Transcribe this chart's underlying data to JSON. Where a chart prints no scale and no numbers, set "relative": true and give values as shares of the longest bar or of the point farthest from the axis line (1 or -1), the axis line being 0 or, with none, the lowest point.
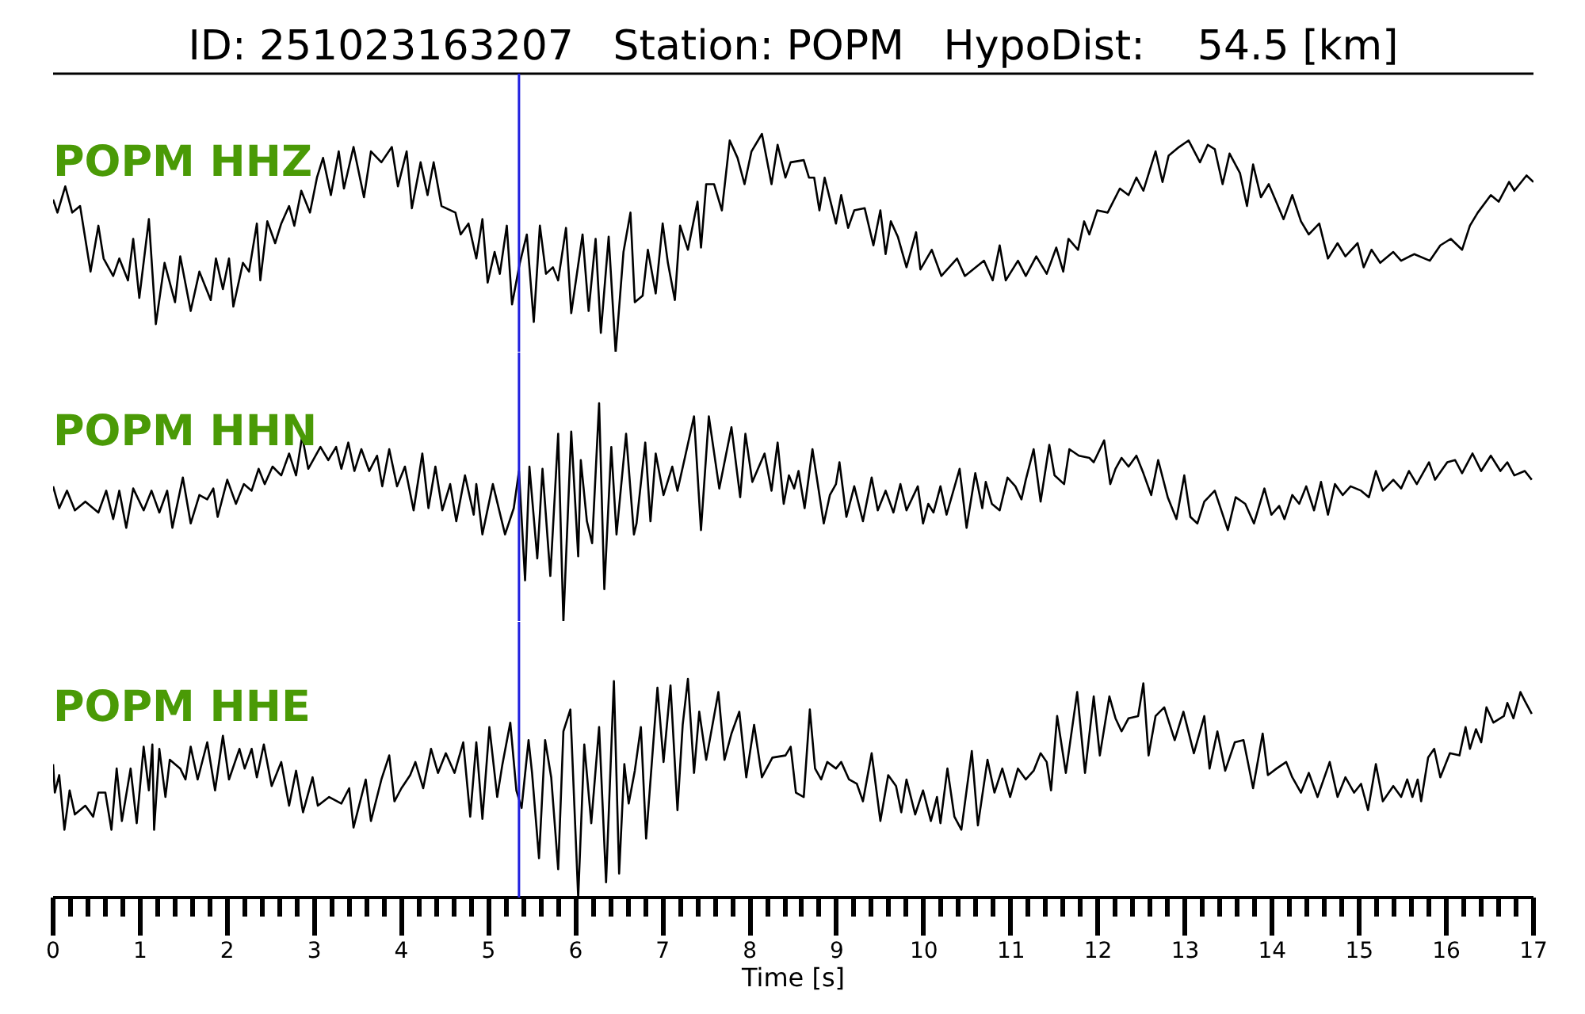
{
  "chart_data": [
    {
      "type": "line",
      "title": "ID: 251023163207   Station: POPM   HypoDist:    54.5 [km]",
      "relative": true,
      "xlim": [
        0,
        17
      ],
      "tick_labels": false,
      "ref_lines": [
        {
          "axis": "x",
          "value": 5.35,
          "color": "#2020e0"
        }
      ],
      "x": [
        0,
        0.05,
        0.14,
        0.22,
        0.31,
        0.37,
        0.43,
        0.52,
        0.58,
        0.69,
        0.76,
        0.86,
        0.92,
        0.99,
        1.1,
        1.18,
        1.28,
        1.4,
        1.46,
        1.58,
        1.68,
        1.81,
        1.87,
        1.95,
        2.02,
        2.07,
        2.18,
        2.25,
        2.34,
        2.38,
        2.46,
        2.55,
        2.62,
        2.71,
        2.77,
        2.85,
        2.95,
        3.03,
        3.1,
        3.19,
        3.28,
        3.34,
        3.45,
        3.57,
        3.65,
        3.77,
        3.89,
        3.96,
        4.06,
        4.12,
        4.22,
        4.3,
        4.37,
        4.46,
        4.62,
        4.68,
        4.77,
        4.86,
        4.93,
        4.99,
        5.07,
        5.13,
        5.21,
        5.27,
        5.36,
        5.44,
        5.52,
        5.59,
        5.66,
        5.74,
        5.8,
        5.89,
        5.95,
        6.08,
        6.15,
        6.23,
        6.29,
        6.38,
        6.46,
        6.55,
        6.63,
        6.68,
        6.77,
        6.83,
        6.92,
        7,
        7.06,
        7.14,
        7.2,
        7.29,
        7.4,
        7.44,
        7.5,
        7.59,
        7.68,
        7.77,
        7.86,
        7.94,
        8.02,
        8.14,
        8.25,
        8.32,
        8.41,
        8.47,
        8.62,
        8.68,
        8.74,
        8.8,
        8.86,
        8.99,
        9.05,
        9.13,
        9.2,
        9.32,
        9.42,
        9.5,
        9.56,
        9.62,
        9.7,
        9.8,
        9.91,
        9.96,
        10.09,
        10.2,
        10.38,
        10.47,
        10.69,
        10.79,
        10.87,
        10.94,
        11.08,
        11.17,
        11.29,
        11.41,
        11.52,
        11.6,
        11.66,
        11.77,
        11.84,
        11.9,
        11.99,
        12.11,
        12.25,
        12.35,
        12.44,
        12.52,
        12.66,
        12.74,
        12.81,
        12.93,
        13.04,
        13.17,
        13.26,
        13.34,
        13.43,
        13.51,
        13.63,
        13.71,
        13.78,
        13.87,
        13.96,
        14.13,
        14.23,
        14.33,
        14.42,
        14.54,
        14.64,
        14.75,
        14.84,
        14.98,
        15.05,
        15.14,
        15.24,
        15.39,
        15.48,
        15.63,
        15.81,
        15.93,
        16.05,
        16.18,
        16.27,
        16.36,
        16.51,
        16.6,
        16.72,
        16.78,
        16.92,
        17
      ],
      "series": [
        {
          "name": "POPM HHZ",
          "color": "#000000",
          "values": [
            0.7,
            0.64,
            0.76,
            0.64,
            0.67,
            0.52,
            0.37,
            0.58,
            0.43,
            0.35,
            0.43,
            0.33,
            0.52,
            0.25,
            0.61,
            0.13,
            0.41,
            0.23,
            0.44,
            0.19,
            0.37,
            0.24,
            0.43,
            0.29,
            0.43,
            0.21,
            0.41,
            0.37,
            0.59,
            0.33,
            0.6,
            0.5,
            0.59,
            0.67,
            0.58,
            0.74,
            0.64,
            0.8,
            0.89,
            0.72,
            0.92,
            0.75,
            0.94,
            0.71,
            0.92,
            0.87,
            0.94,
            0.76,
            0.92,
            0.66,
            0.87,
            0.72,
            0.87,
            0.67,
            0.64,
            0.54,
            0.59,
            0.43,
            0.61,
            0.32,
            0.46,
            0.36,
            0.58,
            0.22,
            0.41,
            0.54,
            0.14,
            0.58,
            0.36,
            0.39,
            0.33,
            0.57,
            0.18,
            0.54,
            0.19,
            0.52,
            0.09,
            0.53,
            0.0,
            0.46,
            0.64,
            0.23,
            0.26,
            0.47,
            0.27,
            0.59,
            0.41,
            0.24,
            0.58,
            0.47,
            0.69,
            0.48,
            0.77,
            0.77,
            0.65,
            0.97,
            0.89,
            0.77,
            0.92,
            1.0,
            0.77,
            0.95,
            0.8,
            0.87,
            0.88,
            0.8,
            0.8,
            0.65,
            0.8,
            0.59,
            0.72,
            0.57,
            0.65,
            0.66,
            0.49,
            0.65,
            0.45,
            0.6,
            0.53,
            0.39,
            0.55,
            0.38,
            0.47,
            0.35,
            0.43,
            0.35,
            0.42,
            0.33,
            0.49,
            0.33,
            0.42,
            0.35,
            0.44,
            0.36,
            0.48,
            0.37,
            0.52,
            0.47,
            0.6,
            0.54,
            0.65,
            0.64,
            0.75,
            0.72,
            0.8,
            0.74,
            0.92,
            0.78,
            0.9,
            0.94,
            0.97,
            0.87,
            0.95,
            0.93,
            0.77,
            0.91,
            0.82,
            0.67,
            0.86,
            0.71,
            0.77,
            0.61,
            0.72,
            0.6,
            0.54,
            0.59,
            0.43,
            0.5,
            0.44,
            0.5,
            0.39,
            0.47,
            0.41,
            0.46,
            0.42,
            0.45,
            0.42,
            0.49,
            0.52,
            0.47,
            0.58,
            0.64,
            0.72,
            0.69,
            0.78,
            0.74,
            0.81,
            0.78
          ]
        }
      ]
    },
    {
      "type": "line",
      "relative": true,
      "xlim": [
        0,
        17
      ],
      "tick_labels": false,
      "ref_lines": [
        {
          "axis": "x",
          "value": 5.35,
          "color": "#2020e0"
        }
      ],
      "x": [
        0,
        0.07,
        0.16,
        0.25,
        0.37,
        0.52,
        0.61,
        0.69,
        0.76,
        0.84,
        0.92,
        1.04,
        1.13,
        1.22,
        1.31,
        1.37,
        1.49,
        1.58,
        1.68,
        1.77,
        1.84,
        1.89,
        2,
        2.1,
        2.19,
        2.28,
        2.36,
        2.43,
        2.52,
        2.62,
        2.71,
        2.79,
        2.86,
        2.93,
        3.07,
        3.16,
        3.25,
        3.31,
        3.39,
        3.46,
        3.54,
        3.63,
        3.72,
        3.78,
        3.86,
        3.95,
        4.04,
        4.14,
        4.24,
        4.31,
        4.39,
        4.47,
        4.56,
        4.63,
        4.73,
        4.83,
        4.86,
        4.93,
        5.05,
        5.19,
        5.29,
        5.35,
        5.42,
        5.47,
        5.56,
        5.62,
        5.71,
        5.8,
        5.86,
        5.95,
        6.03,
        6.06,
        6.13,
        6.19,
        6.27,
        6.33,
        6.41,
        6.47,
        6.58,
        6.67,
        6.7,
        6.8,
        6.86,
        6.92,
        7.01,
        7.11,
        7.17,
        7.26,
        7.36,
        7.44,
        7.53,
        7.65,
        7.79,
        7.89,
        7.95,
        8.03,
        8.17,
        8.25,
        8.32,
        8.39,
        8.45,
        8.51,
        8.56,
        8.63,
        8.72,
        8.85,
        8.92,
        8.99,
        9.03,
        9.11,
        9.2,
        9.3,
        9.4,
        9.47,
        9.56,
        9.65,
        9.73,
        9.8,
        9.93,
        9.99,
        10.05,
        10.11,
        10.19,
        10.26,
        10.41,
        10.49,
        10.59,
        10.67,
        10.71,
        10.78,
        10.87,
        10.96,
        11.05,
        11.12,
        11.17,
        11.26,
        11.34,
        11.44,
        11.5,
        11.61,
        11.67,
        11.78,
        11.9,
        11.95,
        12.07,
        12.14,
        12.2,
        12.27,
        12.35,
        12.44,
        12.52,
        12.61,
        12.69,
        12.8,
        12.9,
        12.99,
        13.06,
        13.14,
        13.22,
        13.34,
        13.49,
        13.58,
        13.69,
        13.79,
        13.91,
        13.99,
        14.08,
        14.14,
        14.23,
        14.31,
        14.39,
        14.48,
        14.56,
        14.64,
        14.72,
        14.81,
        14.9,
        15.02,
        15.11,
        15.19,
        15.27,
        15.39,
        15.48,
        15.57,
        15.66,
        15.8,
        15.87,
        16.01,
        16.1,
        16.18,
        16.3,
        16.4,
        16.51,
        16.62,
        16.7,
        16.78,
        16.9,
        16.98
      ],
      "series": [
        {
          "name": "POPM HHN",
          "color": "#000000",
          "values": [
            0.62,
            0.52,
            0.6,
            0.51,
            0.55,
            0.5,
            0.6,
            0.47,
            0.6,
            0.43,
            0.61,
            0.51,
            0.6,
            0.5,
            0.6,
            0.43,
            0.66,
            0.45,
            0.58,
            0.56,
            0.61,
            0.48,
            0.65,
            0.54,
            0.63,
            0.6,
            0.7,
            0.63,
            0.71,
            0.67,
            0.77,
            0.67,
            0.85,
            0.7,
            0.8,
            0.74,
            0.8,
            0.7,
            0.82,
            0.69,
            0.79,
            0.69,
            0.76,
            0.62,
            0.79,
            0.62,
            0.71,
            0.51,
            0.77,
            0.52,
            0.71,
            0.51,
            0.63,
            0.46,
            0.67,
            0.49,
            0.63,
            0.4,
            0.63,
            0.4,
            0.52,
            0.69,
            0.19,
            0.71,
            0.29,
            0.7,
            0.21,
            0.86,
            0.0,
            0.87,
            0.3,
            0.74,
            0.46,
            0.36,
            1.0,
            0.15,
            0.8,
            0.4,
            0.86,
            0.4,
            0.45,
            0.82,
            0.46,
            0.77,
            0.58,
            0.71,
            0.6,
            0.76,
            0.94,
            0.42,
            0.94,
            0.61,
            0.89,
            0.57,
            0.86,
            0.64,
            0.77,
            0.6,
            0.82,
            0.54,
            0.67,
            0.61,
            0.69,
            0.52,
            0.79,
            0.45,
            0.58,
            0.63,
            0.73,
            0.48,
            0.62,
            0.46,
            0.66,
            0.51,
            0.6,
            0.5,
            0.63,
            0.51,
            0.62,
            0.45,
            0.54,
            0.5,
            0.62,
            0.49,
            0.7,
            0.43,
            0.68,
            0.52,
            0.64,
            0.54,
            0.51,
            0.66,
            0.62,
            0.56,
            0.65,
            0.79,
            0.55,
            0.81,
            0.67,
            0.63,
            0.79,
            0.76,
            0.75,
            0.73,
            0.83,
            0.63,
            0.7,
            0.75,
            0.71,
            0.76,
            0.68,
            0.58,
            0.74,
            0.57,
            0.47,
            0.67,
            0.48,
            0.45,
            0.55,
            0.6,
            0.42,
            0.57,
            0.54,
            0.45,
            0.61,
            0.49,
            0.53,
            0.47,
            0.58,
            0.54,
            0.62,
            0.51,
            0.64,
            0.49,
            0.63,
            0.58,
            0.62,
            0.6,
            0.57,
            0.69,
            0.6,
            0.65,
            0.61,
            0.69,
            0.63,
            0.73,
            0.65,
            0.73,
            0.74,
            0.68,
            0.77,
            0.69,
            0.76,
            0.69,
            0.73,
            0.67,
            0.69,
            0.65
          ]
        }
      ]
    },
    {
      "type": "line",
      "relative": true,
      "xlim": [
        0,
        17
      ],
      "tick_labels": "x",
      "xlabel": "Time [s]",
      "xticks": [
        0,
        1,
        2,
        3,
        4,
        5,
        6,
        7,
        8,
        9,
        10,
        11,
        12,
        13,
        14,
        15,
        16,
        17
      ],
      "ref_lines": [
        {
          "axis": "x",
          "value": 5.35,
          "color": "#2020e0"
        }
      ],
      "x": [
        0,
        0.02,
        0.07,
        0.13,
        0.19,
        0.25,
        0.37,
        0.46,
        0.52,
        0.6,
        0.67,
        0.73,
        0.79,
        0.89,
        0.96,
        1.04,
        1.1,
        1.14,
        1.16,
        1.22,
        1.29,
        1.34,
        1.46,
        1.52,
        1.58,
        1.66,
        1.77,
        1.86,
        1.95,
        2.02,
        2.14,
        2.2,
        2.28,
        2.34,
        2.42,
        2.51,
        2.62,
        2.71,
        2.79,
        2.87,
        2.98,
        3.04,
        3.17,
        3.31,
        3.4,
        3.45,
        3.59,
        3.65,
        3.77,
        3.86,
        3.92,
        4,
        4.1,
        4.16,
        4.25,
        4.34,
        4.42,
        4.51,
        4.61,
        4.71,
        4.79,
        4.86,
        4.93,
        5.01,
        5.1,
        5.16,
        5.25,
        5.32,
        5.38,
        5.46,
        5.5,
        5.58,
        5.65,
        5.72,
        5.8,
        5.86,
        5.94,
        6.03,
        6.1,
        6.18,
        6.27,
        6.35,
        6.44,
        6.5,
        6.56,
        6.61,
        6.68,
        6.75,
        6.81,
        6.94,
        7.01,
        7.09,
        7.17,
        7.23,
        7.29,
        7.36,
        7.42,
        7.5,
        7.64,
        7.71,
        7.79,
        7.88,
        7.96,
        8.05,
        8.14,
        8.26,
        8.41,
        8.47,
        8.53,
        8.62,
        8.69,
        8.75,
        8.82,
        8.89,
        8.99,
        9.05,
        9.14,
        9.23,
        9.3,
        9.4,
        9.5,
        9.59,
        9.68,
        9.74,
        9.8,
        9.9,
        9.99,
        10.08,
        10.15,
        10.19,
        10.27,
        10.35,
        10.43,
        10.55,
        10.62,
        10.73,
        10.81,
        10.9,
        10.99,
        11.08,
        11.17,
        11.26,
        11.34,
        11.41,
        11.46,
        11.53,
        11.63,
        11.76,
        11.85,
        11.95,
        12.02,
        12.13,
        12.2,
        12.27,
        12.35,
        12.46,
        12.52,
        12.58,
        12.66,
        12.76,
        12.88,
        12.98,
        13.1,
        13.22,
        13.28,
        13.37,
        13.46,
        13.57,
        13.67,
        13.78,
        13.89,
        13.95,
        14.05,
        14.16,
        14.23,
        14.33,
        14.42,
        14.52,
        14.66,
        14.75,
        14.84,
        14.94,
        15.02,
        15.1,
        15.19,
        15.27,
        15.39,
        15.48,
        15.55,
        15.61,
        15.67,
        15.71,
        15.79,
        15.86,
        15.93,
        16.04,
        16.15,
        16.22,
        16.27,
        16.34,
        16.4,
        16.46,
        16.54,
        16.66,
        16.7,
        16.77,
        16.85,
        16.9,
        16.98
      ],
      "series": [
        {
          "name": "POPM HHE",
          "color": "#000000",
          "values": [
            0.61,
            0.48,
            0.56,
            0.31,
            0.49,
            0.38,
            0.42,
            0.37,
            0.48,
            0.48,
            0.31,
            0.59,
            0.35,
            0.59,
            0.34,
            0.69,
            0.49,
            0.7,
            0.31,
            0.68,
            0.46,
            0.63,
            0.59,
            0.54,
            0.69,
            0.54,
            0.71,
            0.49,
            0.74,
            0.54,
            0.68,
            0.59,
            0.68,
            0.55,
            0.7,
            0.51,
            0.62,
            0.42,
            0.58,
            0.39,
            0.55,
            0.42,
            0.46,
            0.43,
            0.5,
            0.32,
            0.54,
            0.35,
            0.54,
            0.65,
            0.44,
            0.5,
            0.56,
            0.62,
            0.5,
            0.68,
            0.57,
            0.66,
            0.57,
            0.71,
            0.37,
            0.71,
            0.36,
            0.78,
            0.46,
            0.61,
            0.8,
            0.49,
            0.41,
            0.72,
            0.57,
            0.18,
            0.72,
            0.55,
            0.13,
            0.76,
            0.86,
            0.0,
            0.7,
            0.34,
            0.78,
            0.07,
            0.99,
            0.11,
            0.61,
            0.43,
            0.58,
            0.78,
            0.27,
            0.96,
            0.62,
            0.97,
            0.4,
            0.79,
            1.0,
            0.57,
            0.85,
            0.63,
            0.94,
            0.63,
            0.75,
            0.85,
            0.55,
            0.79,
            0.55,
            0.64,
            0.65,
            0.69,
            0.48,
            0.46,
            0.86,
            0.59,
            0.54,
            0.62,
            0.59,
            0.62,
            0.54,
            0.52,
            0.44,
            0.66,
            0.35,
            0.56,
            0.51,
            0.39,
            0.54,
            0.38,
            0.49,
            0.35,
            0.46,
            0.34,
            0.59,
            0.37,
            0.31,
            0.67,
            0.33,
            0.63,
            0.48,
            0.59,
            0.46,
            0.59,
            0.54,
            0.58,
            0.66,
            0.62,
            0.49,
            0.83,
            0.57,
            0.94,
            0.57,
            0.92,
            0.65,
            0.92,
            0.82,
            0.76,
            0.82,
            0.83,
            0.98,
            0.65,
            0.83,
            0.87,
            0.72,
            0.85,
            0.66,
            0.83,
            0.59,
            0.76,
            0.58,
            0.71,
            0.72,
            0.5,
            0.75,
            0.56,
            0.59,
            0.62,
            0.55,
            0.48,
            0.57,
            0.46,
            0.62,
            0.46,
            0.55,
            0.48,
            0.52,
            0.4,
            0.61,
            0.44,
            0.51,
            0.46,
            0.54,
            0.46,
            0.54,
            0.44,
            0.64,
            0.68,
            0.55,
            0.66,
            0.65,
            0.78,
            0.68,
            0.77,
            0.71,
            0.87,
            0.8,
            0.83,
            0.89,
            0.82,
            0.94,
            0.9,
            0.84
          ]
        }
      ]
    }
  ]
}
